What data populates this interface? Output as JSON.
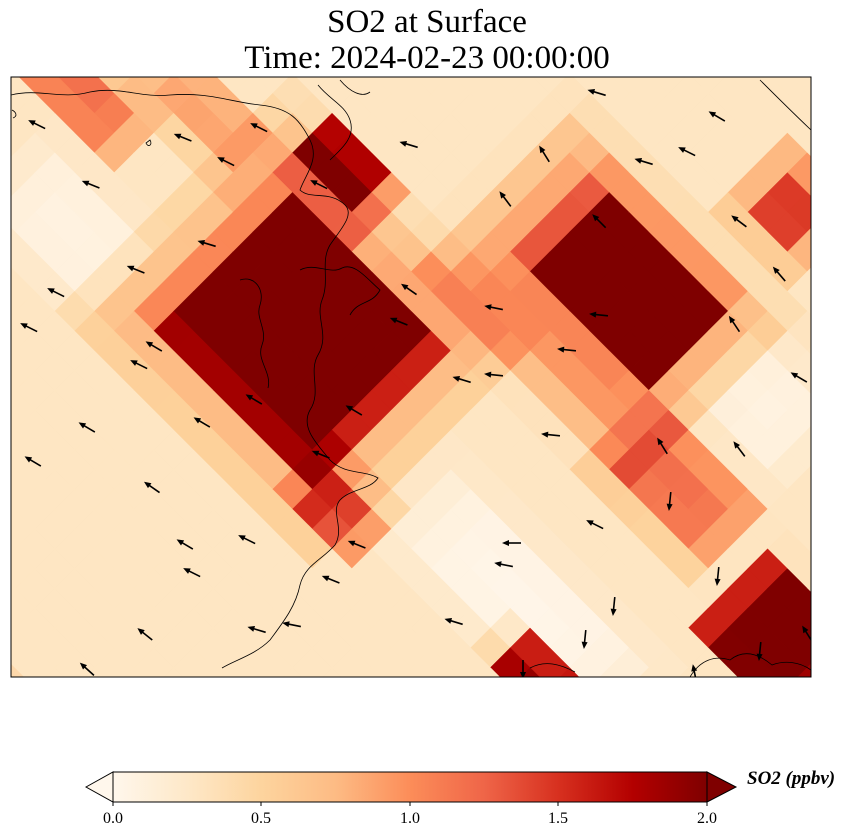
{
  "title": {
    "line1": "SO2 at Surface",
    "line2": "Time: 2024-02-23 00:00:00"
  },
  "colorbar": {
    "label": "SO2 (ppbv)",
    "min": 0.0,
    "max": 2.0,
    "extend": "both",
    "colormap": "OrRd",
    "ticks": [
      "0.0",
      "0.5",
      "1.0",
      "1.5",
      "2.0"
    ],
    "stops": [
      "#fff7ec",
      "#fee8c8",
      "#fdd49e",
      "#fdbb84",
      "#fc8d59",
      "#ef6548",
      "#d7301f",
      "#b30000",
      "#7f0000"
    ]
  },
  "map": {
    "field": "SO2",
    "units": "ppbv",
    "arrows": "wind vectors",
    "coastlines": true
  }
}
